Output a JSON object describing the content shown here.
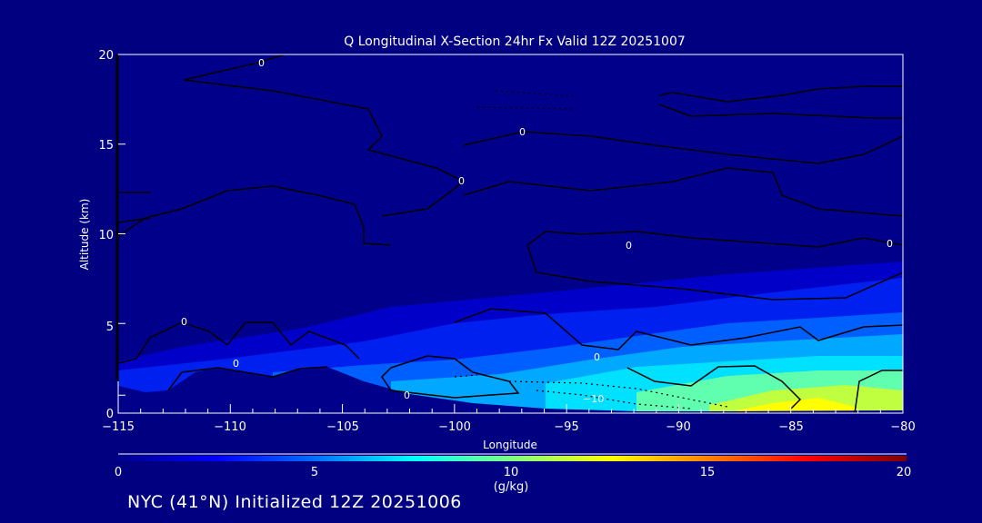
{
  "chart_data": {
    "type": "heatmap",
    "title": "Q Longitudinal X-Section 24hr  Fx Valid 12Z 20251007",
    "xlabel": "Longitude",
    "ylabel": "Altitude (km)",
    "xlim": [
      -115,
      -80
    ],
    "ylim": [
      0,
      20
    ],
    "x_ticks": [
      -115,
      -110,
      -105,
      -100,
      -95,
      -90,
      -85,
      -80
    ],
    "x_tick_labels": [
      "−115",
      "−110",
      "−105",
      "−100",
      "−95",
      "−90",
      "−85",
      "−80"
    ],
    "y_ticks": [
      0,
      5,
      10,
      15,
      20
    ],
    "y_tick_labels": [
      "0",
      "5",
      "10",
      "15",
      "20"
    ],
    "colorbar": {
      "label": "(g/kg)",
      "range": [
        0,
        20
      ],
      "ticks": [
        "0",
        "5",
        "10",
        "15",
        "20"
      ],
      "colors": [
        "#00008f",
        "#0000ff",
        "#0080ff",
        "#00ffff",
        "#80ff80",
        "#ffff00",
        "#ff8000",
        "#ff0000",
        "#800000"
      ]
    },
    "field_max_region": {
      "lon": [
        -88,
        -82
      ],
      "alt_km": [
        0,
        1
      ],
      "value_approx": 12
    },
    "contour_labels": [
      "0",
      "0",
      "0",
      "0",
      "0",
      "0",
      "0",
      "0",
      "0",
      "−10"
    ],
    "contour_note_levels": [
      0,
      -10
    ]
  },
  "footer": "NYC (41°N) Initialized 12Z 20251006"
}
